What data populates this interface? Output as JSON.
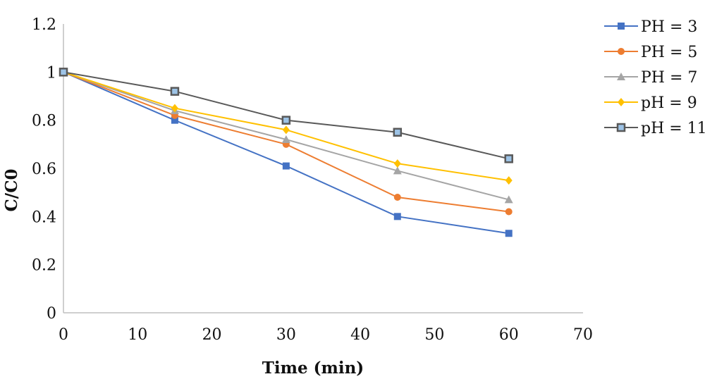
{
  "chart_data": {
    "type": "line",
    "title": "",
    "xlabel": "Time (min)",
    "ylabel": "C/C0",
    "xlim": [
      0,
      70
    ],
    "ylim": [
      0,
      1.2
    ],
    "x_ticks": [
      0,
      10,
      20,
      30,
      40,
      50,
      60,
      70
    ],
    "y_ticks": [
      0,
      0.2,
      0.4,
      0.6,
      0.8,
      1,
      1.2
    ],
    "y_tick_labels": [
      "0",
      "0.2",
      "0.4",
      "0.6",
      "0.8",
      "1",
      "1.2"
    ],
    "grid": false,
    "legend_position": "right",
    "x": [
      0,
      15,
      30,
      45,
      60
    ],
    "series": [
      {
        "name": "PH = 3",
        "color": "#4472C4",
        "marker": "square",
        "values": [
          1.0,
          0.8,
          0.61,
          0.4,
          0.33
        ]
      },
      {
        "name": "PH = 5",
        "color": "#ED7D31",
        "marker": "circle",
        "values": [
          1.0,
          0.82,
          0.7,
          0.48,
          0.42
        ]
      },
      {
        "name": "PH = 7",
        "color": "#A5A5A5",
        "marker": "triangle",
        "values": [
          1.0,
          0.84,
          0.72,
          0.59,
          0.47
        ]
      },
      {
        "name": "pH = 9",
        "color": "#FFC000",
        "marker": "diamond",
        "values": [
          1.0,
          0.85,
          0.76,
          0.62,
          0.55
        ]
      },
      {
        "name": "pH = 11",
        "color": "#595959",
        "marker": "square-outline",
        "marker_fill": "#9DC3E6",
        "values": [
          1.0,
          0.92,
          0.8,
          0.75,
          0.64
        ]
      }
    ]
  }
}
